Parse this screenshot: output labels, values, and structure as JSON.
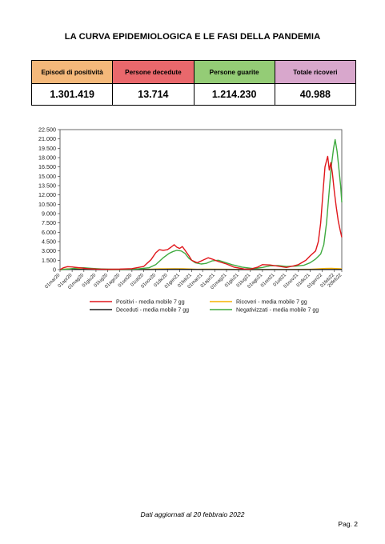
{
  "page": {
    "title": "LA CURVA EPIDEMIOLOGICA E LE FASI DELLA PANDEMIA",
    "footer": "Dati aggiornati al 20 febbraio 2022",
    "page_number": "Pag. 2"
  },
  "stats": [
    {
      "label": "Episodi di positività",
      "value": "1.301.419",
      "color": "#f4b87a"
    },
    {
      "label": "Persone decedute",
      "value": "13.714",
      "color": "#e9686c"
    },
    {
      "label": "Persone guarite",
      "value": "1.214.230",
      "color": "#94cc76"
    },
    {
      "label": "Totale ricoveri",
      "value": "40.988",
      "color": "#d8a7cc"
    }
  ],
  "chart_data": {
    "type": "line",
    "ylim": [
      0,
      22500
    ],
    "yticks": [
      {
        "value": 0,
        "label": "0"
      },
      {
        "value": 1500,
        "label": "1.500"
      },
      {
        "value": 3000,
        "label": "3.000"
      },
      {
        "value": 4500,
        "label": "4.500"
      },
      {
        "value": 6000,
        "label": "6.000"
      },
      {
        "value": 7500,
        "label": "7.500"
      },
      {
        "value": 9000,
        "label": "9.000"
      },
      {
        "value": 10500,
        "label": "10.500"
      },
      {
        "value": 12000,
        "label": "12.000"
      },
      {
        "value": 13500,
        "label": "13.500"
      },
      {
        "value": 15000,
        "label": "15.000"
      },
      {
        "value": 16500,
        "label": "16.500"
      },
      {
        "value": 18000,
        "label": "18.000"
      },
      {
        "value": 19500,
        "label": "19.500"
      },
      {
        "value": 21000,
        "label": "21.000"
      },
      {
        "value": 22500,
        "label": "22.500"
      }
    ],
    "xlim": [
      "2020-03-01",
      "2022-02-20"
    ],
    "xticks": [
      {
        "date": "2020-03-01",
        "label": "01mar20"
      },
      {
        "date": "2020-04-01",
        "label": "01apr20"
      },
      {
        "date": "2020-05-01",
        "label": "01mag20"
      },
      {
        "date": "2020-06-01",
        "label": "01giu20"
      },
      {
        "date": "2020-07-01",
        "label": "01lug20"
      },
      {
        "date": "2020-08-01",
        "label": "01ago20"
      },
      {
        "date": "2020-09-01",
        "label": "01set20"
      },
      {
        "date": "2020-10-01",
        "label": "01ott20"
      },
      {
        "date": "2020-11-01",
        "label": "01nov20"
      },
      {
        "date": "2020-12-01",
        "label": "01dic20"
      },
      {
        "date": "2021-01-01",
        "label": "01gen21"
      },
      {
        "date": "2021-02-01",
        "label": "01feb21"
      },
      {
        "date": "2021-03-01",
        "label": "01mar21"
      },
      {
        "date": "2021-04-01",
        "label": "01apr21"
      },
      {
        "date": "2021-05-01",
        "label": "01mag21"
      },
      {
        "date": "2021-06-01",
        "label": "01giu21"
      },
      {
        "date": "2021-07-01",
        "label": "01lug21"
      },
      {
        "date": "2021-08-01",
        "label": "01ago21"
      },
      {
        "date": "2021-09-01",
        "label": "01set21"
      },
      {
        "date": "2021-10-01",
        "label": "01ott21"
      },
      {
        "date": "2021-11-01",
        "label": "01nov21"
      },
      {
        "date": "2021-12-01",
        "label": "01dic21"
      },
      {
        "date": "2022-01-01",
        "label": "01gen22"
      },
      {
        "date": "2022-02-01",
        "label": "01feb22"
      },
      {
        "date": "2022-02-20",
        "label": "20feb22"
      }
    ],
    "grid": false,
    "legend_position": "bottom",
    "series": [
      {
        "name": "Positivi - media mobile 7 gg",
        "color": "#e0161b",
        "points": [
          [
            "2020-03-01",
            0
          ],
          [
            "2020-03-10",
            300
          ],
          [
            "2020-03-20",
            480
          ],
          [
            "2020-04-01",
            420
          ],
          [
            "2020-04-20",
            300
          ],
          [
            "2020-05-10",
            150
          ],
          [
            "2020-06-01",
            80
          ],
          [
            "2020-07-01",
            60
          ],
          [
            "2020-08-01",
            80
          ],
          [
            "2020-09-01",
            150
          ],
          [
            "2020-10-01",
            500
          ],
          [
            "2020-10-20",
            1600
          ],
          [
            "2020-11-01",
            2700
          ],
          [
            "2020-11-10",
            3200
          ],
          [
            "2020-11-20",
            3100
          ],
          [
            "2020-12-01",
            3200
          ],
          [
            "2020-12-10",
            3600
          ],
          [
            "2020-12-18",
            4000
          ],
          [
            "2020-12-25",
            3600
          ],
          [
            "2021-01-01",
            3400
          ],
          [
            "2021-01-08",
            3700
          ],
          [
            "2021-01-15",
            3100
          ],
          [
            "2021-01-25",
            2200
          ],
          [
            "2021-02-01",
            1500
          ],
          [
            "2021-02-15",
            1100
          ],
          [
            "2021-03-01",
            1500
          ],
          [
            "2021-03-15",
            1900
          ],
          [
            "2021-03-25",
            1700
          ],
          [
            "2021-04-10",
            1300
          ],
          [
            "2021-05-01",
            900
          ],
          [
            "2021-05-20",
            400
          ],
          [
            "2021-06-15",
            100
          ],
          [
            "2021-07-01",
            80
          ],
          [
            "2021-07-20",
            400
          ],
          [
            "2021-08-01",
            800
          ],
          [
            "2021-08-20",
            750
          ],
          [
            "2021-09-15",
            500
          ],
          [
            "2021-10-01",
            350
          ],
          [
            "2021-10-20",
            600
          ],
          [
            "2021-11-01",
            800
          ],
          [
            "2021-11-20",
            1500
          ],
          [
            "2021-12-01",
            2200
          ],
          [
            "2021-12-15",
            3000
          ],
          [
            "2021-12-22",
            4500
          ],
          [
            "2021-12-28",
            7500
          ],
          [
            "2022-01-03",
            12500
          ],
          [
            "2022-01-08",
            16500
          ],
          [
            "2022-01-12",
            17500
          ],
          [
            "2022-01-15",
            18200
          ],
          [
            "2022-01-19",
            16000
          ],
          [
            "2022-01-23",
            17200
          ],
          [
            "2022-01-27",
            15500
          ],
          [
            "2022-02-01",
            12500
          ],
          [
            "2022-02-06",
            10000
          ],
          [
            "2022-02-11",
            7800
          ],
          [
            "2022-02-16",
            6300
          ],
          [
            "2022-02-20",
            5200
          ]
        ]
      },
      {
        "name": "Ricoveri - media mobile 7 gg",
        "color": "#f5b300",
        "points": [
          [
            "2020-03-01",
            0
          ],
          [
            "2020-03-20",
            120
          ],
          [
            "2020-04-10",
            120
          ],
          [
            "2020-05-01",
            60
          ],
          [
            "2020-07-01",
            10
          ],
          [
            "2020-10-01",
            30
          ],
          [
            "2020-11-10",
            120
          ],
          [
            "2020-12-15",
            130
          ],
          [
            "2021-01-10",
            130
          ],
          [
            "2021-02-15",
            60
          ],
          [
            "2021-03-20",
            70
          ],
          [
            "2021-05-01",
            50
          ],
          [
            "2021-07-01",
            10
          ],
          [
            "2021-08-15",
            30
          ],
          [
            "2021-10-15",
            20
          ],
          [
            "2021-12-01",
            60
          ],
          [
            "2022-01-10",
            180
          ],
          [
            "2022-01-25",
            200
          ],
          [
            "2022-02-20",
            120
          ]
        ]
      },
      {
        "name": "Deceduti - media mobile 7 gg",
        "color": "#1e1e1e",
        "points": [
          [
            "2020-03-01",
            0
          ],
          [
            "2020-03-25",
            45
          ],
          [
            "2020-04-20",
            35
          ],
          [
            "2020-06-01",
            10
          ],
          [
            "2020-10-01",
            5
          ],
          [
            "2020-11-20",
            40
          ],
          [
            "2020-12-20",
            50
          ],
          [
            "2021-01-20",
            40
          ],
          [
            "2021-03-15",
            25
          ],
          [
            "2021-06-01",
            5
          ],
          [
            "2021-08-15",
            10
          ],
          [
            "2021-11-01",
            5
          ],
          [
            "2022-01-15",
            30
          ],
          [
            "2022-02-20",
            25
          ]
        ]
      },
      {
        "name": "Negativizzati - media mobile 7 gg",
        "color": "#3faa3f",
        "points": [
          [
            "2020-03-01",
            0
          ],
          [
            "2020-03-25",
            100
          ],
          [
            "2020-04-15",
            280
          ],
          [
            "2020-05-01",
            300
          ],
          [
            "2020-05-20",
            200
          ],
          [
            "2020-06-15",
            100
          ],
          [
            "2020-07-15",
            50
          ],
          [
            "2020-08-15",
            60
          ],
          [
            "2020-09-15",
            100
          ],
          [
            "2020-10-15",
            300
          ],
          [
            "2020-11-01",
            800
          ],
          [
            "2020-11-20",
            1900
          ],
          [
            "2020-12-05",
            2600
          ],
          [
            "2020-12-15",
            2900
          ],
          [
            "2020-12-25",
            3100
          ],
          [
            "2021-01-05",
            3000
          ],
          [
            "2021-01-15",
            2600
          ],
          [
            "2021-01-25",
            1800
          ],
          [
            "2021-02-10",
            1100
          ],
          [
            "2021-02-25",
            900
          ],
          [
            "2021-03-10",
            1000
          ],
          [
            "2021-03-25",
            1400
          ],
          [
            "2021-04-10",
            1500
          ],
          [
            "2021-04-25",
            1200
          ],
          [
            "2021-05-15",
            800
          ],
          [
            "2021-06-10",
            400
          ],
          [
            "2021-07-10",
            150
          ],
          [
            "2021-08-01",
            350
          ],
          [
            "2021-08-20",
            600
          ],
          [
            "2021-09-10",
            650
          ],
          [
            "2021-10-01",
            500
          ],
          [
            "2021-10-25",
            550
          ],
          [
            "2021-11-15",
            700
          ],
          [
            "2021-12-01",
            1100
          ],
          [
            "2021-12-15",
            1700
          ],
          [
            "2021-12-28",
            2500
          ],
          [
            "2022-01-05",
            4000
          ],
          [
            "2022-01-12",
            7500
          ],
          [
            "2022-01-18",
            12000
          ],
          [
            "2022-01-24",
            16500
          ],
          [
            "2022-01-30",
            19500
          ],
          [
            "2022-02-03",
            20900
          ],
          [
            "2022-02-08",
            19000
          ],
          [
            "2022-02-13",
            16000
          ],
          [
            "2022-02-17",
            13500
          ],
          [
            "2022-02-20",
            10800
          ]
        ]
      }
    ],
    "legend_rows": [
      [
        "Positivi - media mobile 7 gg",
        "Ricoveri - media mobile 7 gg"
      ],
      [
        "Deceduti - media mobile 7 gg",
        "Negativizzati - media mobile 7 gg"
      ]
    ]
  }
}
